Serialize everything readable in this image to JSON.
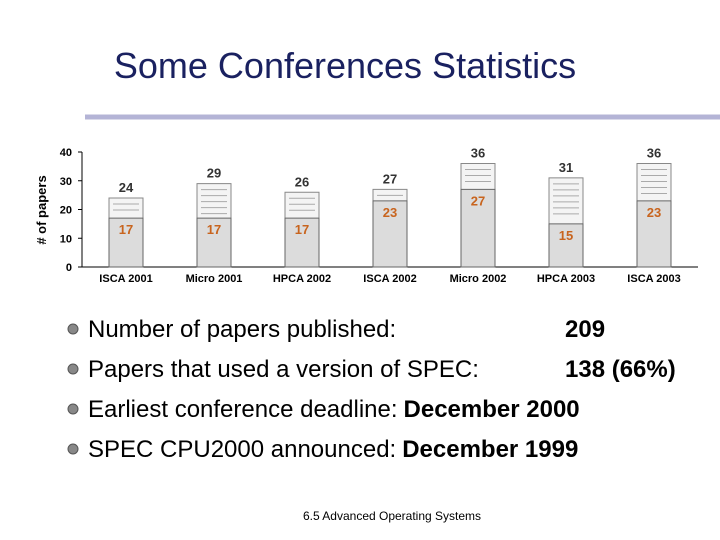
{
  "title": "Some Conferences Statistics",
  "chart_data": {
    "type": "bar",
    "y_label": "# of papers",
    "categories": [
      "ISCA 2001",
      "Micro 2001",
      "HPCA 2002",
      "ISCA 2002",
      "Micro 2002",
      "HPCA 2003",
      "ISCA 2003"
    ],
    "series": [
      {
        "color": "#333333",
        "values": [
          24,
          29,
          26,
          27,
          36,
          31,
          36
        ]
      },
      {
        "color": "#c8641e",
        "values": [
          17,
          17,
          17,
          23,
          27,
          15,
          23
        ]
      }
    ],
    "ylim": [
      0,
      40
    ],
    "yticks": [
      0,
      10,
      20,
      30,
      40
    ]
  },
  "bullets": [
    {
      "text": "Number of papers published:",
      "value": "209"
    },
    {
      "text": "Papers that used a version of SPEC:",
      "value": "138 (66%)"
    },
    {
      "text": "Earliest conference deadline:",
      "value": "December 2000"
    },
    {
      "text": "SPEC CPU2000 announced:",
      "value": "December 1999"
    }
  ],
  "footer": "6.5 Advanced Operating Systems"
}
